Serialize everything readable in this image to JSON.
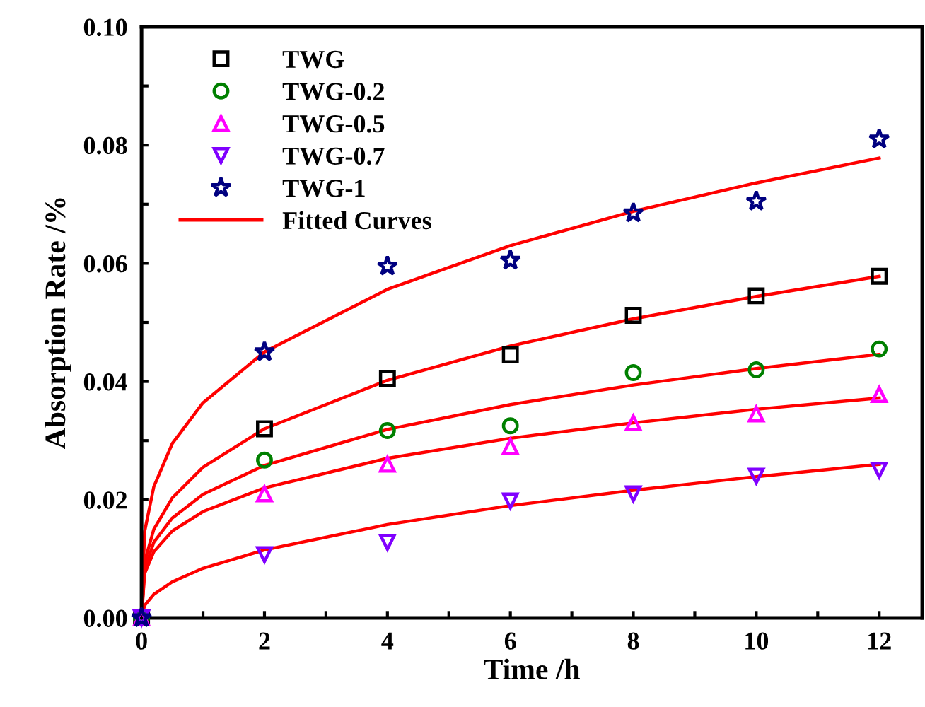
{
  "chart_data": {
    "type": "scatter",
    "xlabel": "Time /h",
    "ylabel": "Absorption Rate /%",
    "x": [
      0,
      2,
      4,
      6,
      8,
      10,
      12
    ],
    "series": [
      {
        "name": "TWG",
        "color": "#000000",
        "marker": "square",
        "values": [
          0,
          0.032,
          0.0405,
          0.0445,
          0.0512,
          0.0545,
          0.0578
        ]
      },
      {
        "name": "TWG-0.2",
        "color": "#008000",
        "marker": "circle",
        "values": [
          0,
          0.0267,
          0.0317,
          0.0325,
          0.0415,
          0.042,
          0.0455
        ]
      },
      {
        "name": "TWG-0.5",
        "color": "#ff00ff",
        "marker": "triangle",
        "values": [
          0,
          0.021,
          0.026,
          0.029,
          0.033,
          0.0345,
          0.0378
        ]
      },
      {
        "name": "TWG-0.7",
        "color": "#8000ff",
        "marker": "triangle_down",
        "values": [
          0,
          0.0107,
          0.0128,
          0.0198,
          0.021,
          0.024,
          0.025
        ]
      },
      {
        "name": "TWG-1",
        "color": "#000080",
        "marker": "star",
        "values": [
          0,
          0.045,
          0.0595,
          0.0605,
          0.0685,
          0.0705,
          0.081
        ]
      },
      {
        "name": "Fitted Curves",
        "type": "line",
        "color": "#ff0000",
        "marker": "none",
        "x": [
          0,
          0.05,
          0.2,
          0.5,
          1,
          2,
          4,
          6,
          8,
          10,
          12
        ],
        "values": [
          0,
          0.0146,
          0.0222,
          0.0295,
          0.0364,
          0.045,
          0.0556,
          0.063,
          0.0688,
          0.0736,
          0.0778
        ]
      },
      {
        "type": "line",
        "color": "#ff0000",
        "marker": "none",
        "x": [
          0,
          0.05,
          0.2,
          0.5,
          1,
          2,
          4,
          6,
          8,
          10,
          12
        ],
        "values": [
          0,
          0.0095,
          0.015,
          0.0203,
          0.0255,
          0.032,
          0.0402,
          0.046,
          0.0506,
          0.0544,
          0.0578
        ]
      },
      {
        "type": "line",
        "color": "#ff0000",
        "marker": "none",
        "x": [
          0,
          0.05,
          0.2,
          0.5,
          1,
          2,
          4,
          6,
          8,
          10,
          12
        ],
        "values": [
          0,
          0.0083,
          0.0128,
          0.0169,
          0.0209,
          0.0258,
          0.0319,
          0.0361,
          0.0394,
          0.0422,
          0.0446
        ]
      },
      {
        "type": "line",
        "color": "#ff0000",
        "marker": "none",
        "x": [
          0,
          0.05,
          0.2,
          0.5,
          1,
          2,
          4,
          6,
          8,
          10,
          12
        ],
        "values": [
          0,
          0.0075,
          0.0112,
          0.0147,
          0.018,
          0.022,
          0.027,
          0.0304,
          0.033,
          0.0353,
          0.0372
        ]
      },
      {
        "type": "line",
        "color": "#ff0000",
        "marker": "none",
        "x": [
          0,
          0.05,
          0.2,
          0.5,
          1,
          2,
          4,
          6,
          8,
          10,
          12
        ],
        "values": [
          0,
          0.0021,
          0.004,
          0.0061,
          0.0084,
          0.0115,
          0.0158,
          0.019,
          0.0216,
          0.0239,
          0.026
        ]
      }
    ],
    "xlim": [
      0,
      12.7
    ],
    "xticks": [
      0,
      {
        "value": 1,
        "label": null
      },
      2,
      {
        "value": 3,
        "label": null
      },
      4,
      {
        "value": 5,
        "label": null
      },
      6,
      {
        "value": 7,
        "label": null
      },
      8,
      {
        "value": 9,
        "label": null
      },
      10,
      {
        "value": 11,
        "label": null
      },
      12
    ],
    "ylim": [
      0,
      0.1
    ],
    "yticks": [
      {
        "value": 0,
        "label": "0.00"
      },
      {
        "value": 0.01,
        "label": null
      },
      {
        "value": 0.02,
        "label": "0.02"
      },
      {
        "value": 0.03,
        "label": null
      },
      {
        "value": 0.04,
        "label": "0.04"
      },
      {
        "value": 0.05,
        "label": null
      },
      {
        "value": 0.06,
        "label": "0.06"
      },
      {
        "value": 0.07,
        "label": null
      },
      {
        "value": 0.08,
        "label": "0.08"
      },
      {
        "value": 0.09,
        "label": null
      },
      {
        "value": 0.1,
        "label": "0.10"
      }
    ],
    "legend": "top left",
    "grid": false
  }
}
